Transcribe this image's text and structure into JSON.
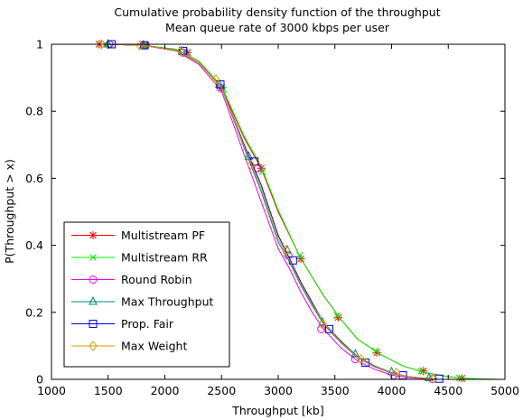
{
  "chart_data": {
    "type": "line",
    "title": [
      "Cumulative probability density function of the throughput",
      "Mean queue rate of 3000 kbps per user"
    ],
    "xlabel": "Throughput [kb]",
    "ylabel": "P(Throughput > x)",
    "xlim": [
      1000,
      5000
    ],
    "ylim": [
      0,
      1
    ],
    "xticks": [
      1000,
      1500,
      2000,
      2500,
      3000,
      3500,
      4000,
      4500,
      5000
    ],
    "yticks": [
      0,
      0.2,
      0.4,
      0.6,
      0.8,
      1
    ],
    "ytick_labels": [
      "0",
      "0.2",
      "0.4",
      "0.6",
      "0.8",
      "1"
    ],
    "grid": false,
    "legend_position": "bottom-left",
    "series": [
      {
        "name": "Multistream PF",
        "color": "#ff0000",
        "marker": "star",
        "x": [
          1400,
          1500,
          1800,
          2100,
          2300,
          2500,
          2700,
          2850,
          3000,
          3200,
          3400,
          3550,
          3700,
          3900,
          4100,
          4300,
          4500,
          4650,
          4800,
          4950
        ],
        "y": [
          1.0,
          1.0,
          0.997,
          0.985,
          0.95,
          0.87,
          0.72,
          0.63,
          0.5,
          0.36,
          0.25,
          0.18,
          0.12,
          0.075,
          0.04,
          0.02,
          0.008,
          0.003,
          0.001,
          0.0
        ],
        "markers_x": [
          1420,
          1820,
          2200,
          2500,
          2850,
          3200,
          3530,
          3870,
          4280,
          4620
        ],
        "markers_y": [
          1.0,
          0.997,
          0.975,
          0.87,
          0.63,
          0.36,
          0.185,
          0.08,
          0.025,
          0.003
        ]
      },
      {
        "name": "Multistream RR",
        "color": "#00ee00",
        "marker": "x",
        "x": [
          1400,
          1500,
          1800,
          2100,
          2300,
          2500,
          2700,
          2850,
          3000,
          3200,
          3400,
          3550,
          3700,
          3900,
          4100,
          4300,
          4500,
          4650,
          4800,
          4950
        ],
        "y": [
          1.0,
          1.0,
          0.997,
          0.985,
          0.95,
          0.875,
          0.725,
          0.635,
          0.505,
          0.36,
          0.25,
          0.18,
          0.12,
          0.075,
          0.04,
          0.02,
          0.008,
          0.003,
          0.001,
          0.0
        ],
        "markers_x": [
          1480,
          1830,
          2180,
          2520,
          2860,
          3190,
          3520,
          3860,
          4260,
          4600
        ],
        "markers_y": [
          1.0,
          0.997,
          0.978,
          0.865,
          0.62,
          0.37,
          0.19,
          0.085,
          0.025,
          0.004
        ]
      },
      {
        "name": "Round Robin",
        "color": "#ee00ee",
        "marker": "circle",
        "x": [
          1400,
          1500,
          1800,
          2100,
          2300,
          2500,
          2700,
          2850,
          3000,
          3100,
          3200,
          3300,
          3400,
          3550,
          3700,
          3850,
          4000,
          4150,
          4300,
          4400
        ],
        "y": [
          1.0,
          1.0,
          0.997,
          0.98,
          0.94,
          0.86,
          0.67,
          0.53,
          0.39,
          0.33,
          0.26,
          0.2,
          0.15,
          0.095,
          0.055,
          0.03,
          0.013,
          0.005,
          0.002,
          0.0
        ],
        "markers_x": [
          1510,
          1830,
          2160,
          2490,
          2820,
          3090,
          3380,
          3680,
          4020,
          4360
        ],
        "markers_y": [
          1.0,
          0.997,
          0.975,
          0.87,
          0.63,
          0.37,
          0.15,
          0.06,
          0.012,
          0.001
        ]
      },
      {
        "name": "Max Throughput",
        "color": "#008080",
        "marker": "triangle",
        "x": [
          1400,
          1500,
          1800,
          2100,
          2300,
          2500,
          2700,
          2850,
          3000,
          3100,
          3200,
          3300,
          3400,
          3550,
          3700,
          3850,
          4000,
          4150,
          4300,
          4400
        ],
        "y": [
          1.0,
          1.0,
          0.997,
          0.982,
          0.945,
          0.87,
          0.69,
          0.56,
          0.41,
          0.35,
          0.28,
          0.22,
          0.165,
          0.11,
          0.065,
          0.037,
          0.018,
          0.008,
          0.003,
          0.0
        ],
        "markers_x": [
          1500,
          1810,
          2150,
          2480,
          2740,
          3080,
          3390,
          3680,
          4000,
          4330
        ],
        "markers_y": [
          1.0,
          0.997,
          0.978,
          0.88,
          0.665,
          0.385,
          0.17,
          0.075,
          0.022,
          0.004
        ]
      },
      {
        "name": "Prop. Fair",
        "color": "#0000ee",
        "marker": "square",
        "x": [
          1400,
          1500,
          1800,
          2100,
          2300,
          2500,
          2700,
          2850,
          3000,
          3100,
          3200,
          3300,
          3400,
          3550,
          3700,
          3850,
          4000,
          4150,
          4300,
          4400
        ],
        "y": [
          1.0,
          1.0,
          0.997,
          0.982,
          0.945,
          0.87,
          0.7,
          0.58,
          0.43,
          0.36,
          0.29,
          0.23,
          0.17,
          0.115,
          0.068,
          0.04,
          0.02,
          0.008,
          0.003,
          0.0
        ],
        "markers_x": [
          1530,
          1820,
          2160,
          2490,
          2790,
          3130,
          3450,
          3770,
          4100,
          4420
        ],
        "markers_y": [
          1.0,
          0.997,
          0.98,
          0.88,
          0.65,
          0.355,
          0.15,
          0.05,
          0.012,
          0.002
        ]
      },
      {
        "name": "Max Weight",
        "color": "#dd9900",
        "marker": "diamond",
        "x": [
          1400,
          1500,
          1800,
          2100,
          2300,
          2500,
          2700,
          2850,
          3000,
          3100,
          3200,
          3300,
          3400,
          3550,
          3700,
          3850,
          4000,
          4150,
          4300,
          4400
        ],
        "y": [
          1.0,
          1.0,
          0.997,
          0.982,
          0.945,
          0.87,
          0.695,
          0.57,
          0.42,
          0.355,
          0.285,
          0.225,
          0.17,
          0.112,
          0.067,
          0.038,
          0.019,
          0.008,
          0.003,
          0.0
        ],
        "markers_x": [
          1440,
          1780,
          2140,
          2450,
          2760,
          3070,
          3390,
          3730,
          4040,
          4370
        ],
        "markers_y": [
          1.0,
          0.997,
          0.98,
          0.895,
          0.64,
          0.385,
          0.165,
          0.06,
          0.02,
          0.002
        ]
      }
    ]
  }
}
